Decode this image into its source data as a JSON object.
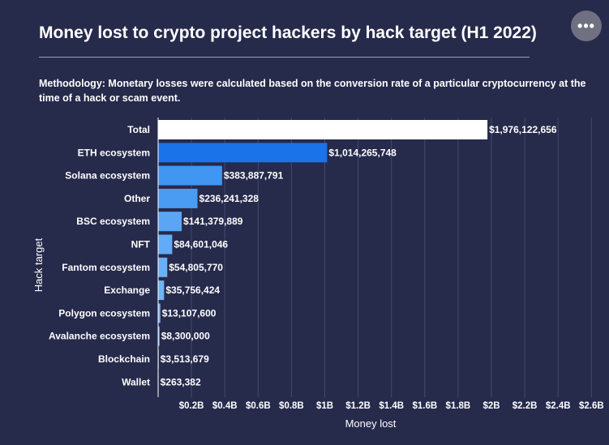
{
  "header": {
    "title": "Money lost to crypto project hackers by hack target (H1 2022)",
    "more_icon": "more-options-icon",
    "more_glyph": "•••"
  },
  "methodology": "Methodology: Monetary losses were calculated based on the conversion rate of a particular cryptocurrency at the time of a hack or scam event.",
  "chart_data": {
    "type": "bar",
    "orientation": "horizontal",
    "title": "Money lost to crypto project hackers by hack target (H1 2022)",
    "xlabel": "Money lost",
    "ylabel": "Hack target",
    "xlim": [
      0,
      2600000000
    ],
    "grid": true,
    "categories": [
      "Total",
      "ETH ecosystem",
      "Solana ecosystem",
      "Other",
      "BSC ecosystem",
      "NFT",
      "Fantom ecosystem",
      "Exchange",
      "Polygon ecosystem",
      "Avalanche ecosystem",
      "Blockchain",
      "Wallet"
    ],
    "values": [
      1976122656,
      1014265748,
      383887791,
      236241328,
      141379889,
      84601046,
      54805770,
      35756424,
      13107600,
      8300000,
      3513679,
      263382
    ],
    "data_labels": [
      "$1,976,122,656",
      "$1,014,265,748",
      "$383,887,791",
      "$236,241,328",
      "$141,379,889",
      "$84,601,046",
      "$54,805,770",
      "$35,756,424",
      "$13,107,600",
      "$8,300,000",
      "$3,513,679",
      "$263,382"
    ],
    "bar_colors": [
      "#ffffff",
      "#1a73e8",
      "#4096f0",
      "#4a9cf2",
      "#5aa6f5",
      "#62abf6",
      "#6aaff7",
      "#70b3f8",
      "#75b6f8",
      "#78b8f9",
      "#7ab9f9",
      "#7cbaf9"
    ],
    "x_ticks": [
      {
        "value": 200000000,
        "label": "$0.2B"
      },
      {
        "value": 400000000,
        "label": "$0.4B"
      },
      {
        "value": 600000000,
        "label": "$0.6B"
      },
      {
        "value": 800000000,
        "label": "$0.8B"
      },
      {
        "value": 1000000000,
        "label": "$1B"
      },
      {
        "value": 1200000000,
        "label": "$1.2B"
      },
      {
        "value": 1400000000,
        "label": "$1.4B"
      },
      {
        "value": 1600000000,
        "label": "$1.6B"
      },
      {
        "value": 1800000000,
        "label": "$1.8B"
      },
      {
        "value": 2000000000,
        "label": "$2B"
      },
      {
        "value": 2200000000,
        "label": "$2.2B"
      },
      {
        "value": 2400000000,
        "label": "$2.4B"
      },
      {
        "value": 2600000000,
        "label": "$2.6B"
      }
    ]
  }
}
